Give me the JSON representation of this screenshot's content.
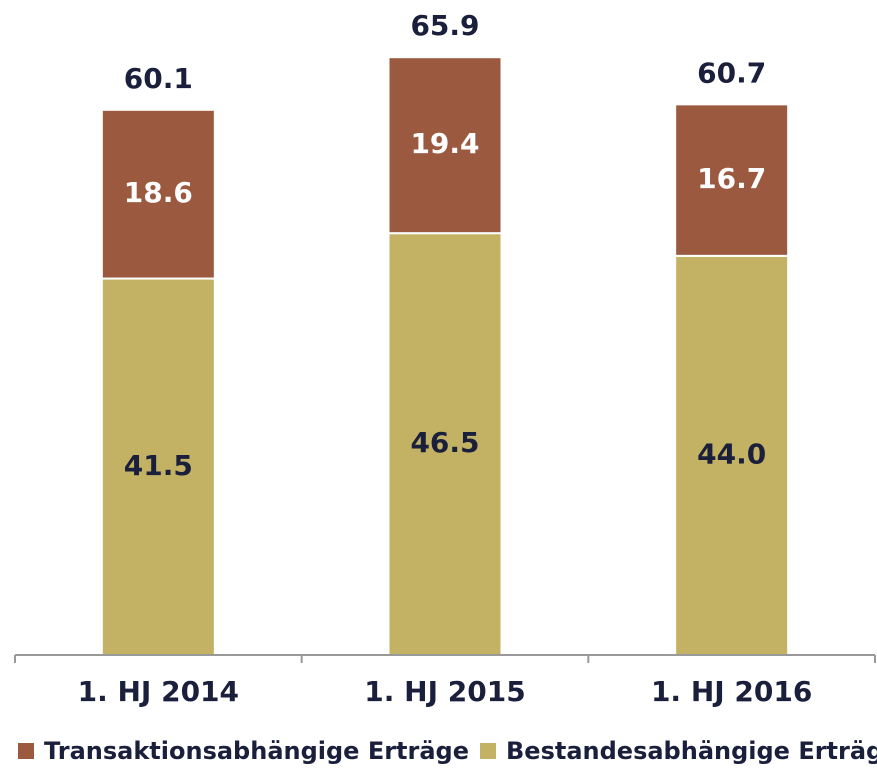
{
  "chart_data": {
    "type": "stacked_bar",
    "categories": [
      "1. HJ 2014",
      "1. HJ 2015",
      "1. HJ 2016"
    ],
    "series": [
      {
        "name": "Transaktionsabhängige Erträge",
        "color": "#9b5a40",
        "values": [
          18.6,
          19.4,
          16.7
        ]
      },
      {
        "name": "Bestandesabhängige Erträge",
        "color": "#c4b264",
        "values": [
          41.5,
          46.5,
          44.0
        ],
        "value_labels": [
          "41.5",
          "46.5",
          "44.0"
        ]
      }
    ],
    "totals": [
      60.1,
      65.9,
      60.7
    ],
    "ylim": [
      0,
      70
    ],
    "legend": "bottom"
  }
}
